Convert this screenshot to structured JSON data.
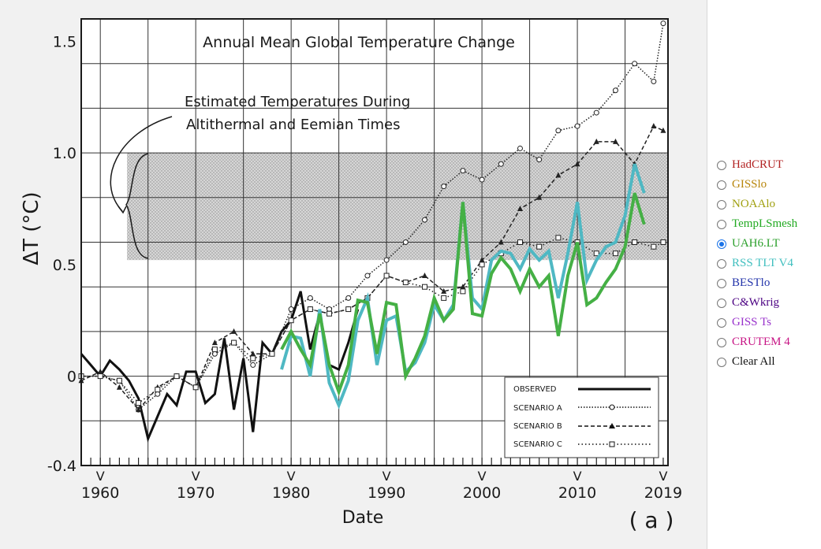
{
  "chart_data": {
    "type": "line",
    "title": "Annual Mean Global Temperature Change",
    "annotation": [
      "Estimated Temperatures During",
      "Altithermal and Eemian Times"
    ],
    "xlabel": "Date",
    "ylabel": "ΔT (°C)",
    "panel_label": "( a )",
    "xlim": [
      1958,
      2019.5
    ],
    "ylim": [
      -0.4,
      1.6
    ],
    "x_ticks": [
      1960,
      1970,
      1980,
      1990,
      2000,
      2010,
      2019
    ],
    "x_tick_labels": [
      "1960",
      "1970",
      "1980",
      "1990",
      "2000",
      "2010",
      "2019"
    ],
    "y_ticks": [
      -0.4,
      0,
      0.5,
      1.0,
      1.5
    ],
    "y_tick_labels": [
      "-0.4",
      "0",
      "0.5",
      "1.0",
      "1.5"
    ],
    "v_markers": [
      "V",
      "V",
      "V",
      "V",
      "V",
      "V",
      "V"
    ],
    "shaded_band": [
      0.52,
      1.0
    ],
    "legend_labels": [
      "OBSERVED",
      "SCENARIO A",
      "SCENARIO B",
      "SCENARIO C"
    ],
    "series": [
      {
        "name": "OBSERVED",
        "style": "solid",
        "x": [
          1958,
          1959,
          1960,
          1961,
          1962,
          1963,
          1964,
          1965,
          1966,
          1967,
          1968,
          1969,
          1970,
          1971,
          1972,
          1973,
          1974,
          1975,
          1976,
          1977,
          1978,
          1979,
          1980,
          1981,
          1982,
          1983,
          1984,
          1985,
          1986,
          1987
        ],
        "y": [
          0.1,
          0.05,
          0.0,
          0.07,
          0.03,
          -0.02,
          -0.1,
          -0.28,
          -0.18,
          -0.08,
          -0.13,
          0.02,
          0.02,
          -0.12,
          -0.08,
          0.17,
          -0.15,
          0.08,
          -0.25,
          0.15,
          0.1,
          0.2,
          0.25,
          0.38,
          0.12,
          0.28,
          0.05,
          0.03,
          0.15,
          0.3
        ]
      },
      {
        "name": "SCENARIO A",
        "style": "dotted-circles",
        "x": [
          1958,
          1960,
          1962,
          1964,
          1966,
          1968,
          1970,
          1972,
          1974,
          1976,
          1978,
          1980,
          1982,
          1984,
          1986,
          1988,
          1990,
          1992,
          1994,
          1996,
          1998,
          2000,
          2002,
          2004,
          2006,
          2008,
          2010,
          2012,
          2014,
          2016,
          2018,
          2019
        ],
        "y": [
          0.0,
          0.0,
          -0.02,
          -0.15,
          -0.08,
          0.0,
          -0.05,
          0.1,
          0.15,
          0.05,
          0.1,
          0.3,
          0.35,
          0.3,
          0.35,
          0.45,
          0.52,
          0.6,
          0.7,
          0.85,
          0.92,
          0.88,
          0.95,
          1.02,
          0.97,
          1.1,
          1.12,
          1.18,
          1.28,
          1.4,
          1.32,
          1.58
        ]
      },
      {
        "name": "SCENARIO B",
        "style": "dashed-triangles",
        "x": [
          1958,
          1960,
          1962,
          1964,
          1966,
          1968,
          1970,
          1972,
          1974,
          1976,
          1978,
          1980,
          1982,
          1984,
          1986,
          1988,
          1990,
          1992,
          1994,
          1996,
          1998,
          2000,
          2002,
          2004,
          2006,
          2008,
          2010,
          2012,
          2014,
          2016,
          2018,
          2019
        ],
        "y": [
          -0.02,
          0.02,
          -0.05,
          -0.15,
          -0.05,
          0.0,
          -0.05,
          0.15,
          0.2,
          0.1,
          0.1,
          0.25,
          0.3,
          0.28,
          0.3,
          0.35,
          0.45,
          0.42,
          0.45,
          0.38,
          0.4,
          0.52,
          0.6,
          0.75,
          0.8,
          0.9,
          0.95,
          1.05,
          1.05,
          0.95,
          1.12,
          1.1
        ]
      },
      {
        "name": "SCENARIO C",
        "style": "dotted-squares",
        "x": [
          1958,
          1960,
          1962,
          1964,
          1966,
          1968,
          1970,
          1972,
          1974,
          1976,
          1978,
          1980,
          1982,
          1984,
          1986,
          1988,
          1990,
          1992,
          1994,
          1996,
          1998,
          2000,
          2002,
          2004,
          2006,
          2008,
          2010,
          2012,
          2014,
          2016,
          2018,
          2019
        ],
        "y": [
          0.0,
          0.0,
          -0.02,
          -0.12,
          -0.06,
          0.0,
          -0.05,
          0.12,
          0.15,
          0.08,
          0.1,
          0.25,
          0.3,
          0.28,
          0.3,
          0.35,
          0.45,
          0.42,
          0.4,
          0.35,
          0.38,
          0.5,
          0.55,
          0.6,
          0.58,
          0.62,
          0.6,
          0.55,
          0.55,
          0.6,
          0.58,
          0.6
        ]
      },
      {
        "name": "UAH6.LT",
        "style": "overlay",
        "color": "#4fb8c3",
        "x": [
          1979,
          1980,
          1981,
          1982,
          1983,
          1984,
          1985,
          1986,
          1987,
          1988,
          1989,
          1990,
          1991,
          1992,
          1993,
          1994,
          1995,
          1996,
          1997,
          1998,
          1999,
          2000,
          2001,
          2002,
          2003,
          2004,
          2005,
          2006,
          2007,
          2008,
          2009,
          2010,
          2011,
          2012,
          2013,
          2014,
          2015,
          2016,
          2017
        ],
        "y": [
          0.03,
          0.18,
          0.17,
          0.0,
          0.3,
          -0.03,
          -0.13,
          -0.02,
          0.25,
          0.35,
          0.05,
          0.25,
          0.27,
          0.02,
          0.06,
          0.15,
          0.32,
          0.25,
          0.32,
          0.78,
          0.35,
          0.3,
          0.52,
          0.56,
          0.55,
          0.48,
          0.57,
          0.52,
          0.56,
          0.35,
          0.55,
          0.78,
          0.43,
          0.52,
          0.58,
          0.6,
          0.72,
          0.95,
          0.82
        ]
      },
      {
        "name": "TempLSmesh",
        "style": "overlay",
        "color": "#45b045",
        "x": [
          1979,
          1980,
          1981,
          1982,
          1983,
          1984,
          1985,
          1986,
          1987,
          1988,
          1989,
          1990,
          1991,
          1992,
          1993,
          1994,
          1995,
          1996,
          1997,
          1998,
          1999,
          2000,
          2001,
          2002,
          2003,
          2004,
          2005,
          2006,
          2007,
          2008,
          2009,
          2010,
          2011,
          2012,
          2013,
          2014,
          2015,
          2016,
          2017
        ],
        "y": [
          0.12,
          0.2,
          0.12,
          0.05,
          0.28,
          0.05,
          -0.07,
          0.05,
          0.34,
          0.33,
          0.1,
          0.33,
          0.32,
          0.0,
          0.08,
          0.18,
          0.35,
          0.25,
          0.3,
          0.78,
          0.28,
          0.27,
          0.46,
          0.53,
          0.48,
          0.38,
          0.48,
          0.4,
          0.45,
          0.18,
          0.45,
          0.6,
          0.32,
          0.35,
          0.42,
          0.48,
          0.58,
          0.82,
          0.68
        ]
      }
    ]
  },
  "legend_panel": {
    "selected": "UAH6.LT",
    "options": [
      {
        "label": "HadCRUT",
        "color": "#b22222",
        "selected": false
      },
      {
        "label": "GISSlo",
        "color": "#b8860b",
        "selected": false
      },
      {
        "label": "NOAAlo",
        "color": "#a0a010",
        "selected": false
      },
      {
        "label": "TempLSmesh",
        "color": "#22aa22",
        "selected": false
      },
      {
        "label": "UAH6.LT",
        "color": "#2ca02c",
        "selected": true
      },
      {
        "label": "RSS TLT V4",
        "color": "#40bfbf",
        "selected": false
      },
      {
        "label": "BESTlo",
        "color": "#2233aa",
        "selected": false
      },
      {
        "label": "C&Wkrig",
        "color": "#4b0082",
        "selected": false
      },
      {
        "label": "GISS Ts",
        "color": "#9932cc",
        "selected": false
      },
      {
        "label": "CRUTEM 4",
        "color": "#c71585",
        "selected": false
      },
      {
        "label": "Clear All",
        "color": "#111111",
        "selected": false
      }
    ]
  }
}
